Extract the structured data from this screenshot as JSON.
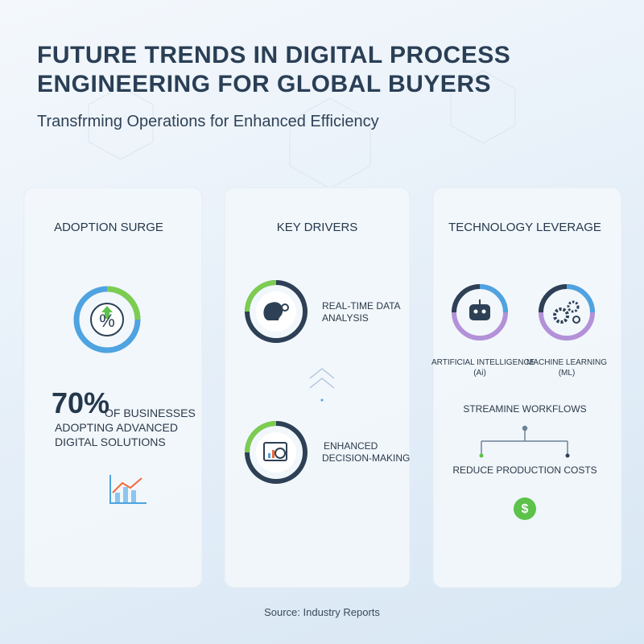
{
  "header": {
    "title": [
      "FUTURE TRENDS IN DIGITAL PROCESS",
      "ENGINEERING FOR GLOBAL BUYERS"
    ],
    "subtitle": "Transfrming Operations for Enhanced Efficiency"
  },
  "cards": [
    {
      "title": "ADOPTION SURGE",
      "icon": "%",
      "stat": "70%",
      "stat_lines": [
        "OF BUSINESSES",
        "ADOPTING ADVANCED",
        "DIGITAL SOLUTIONS"
      ]
    },
    {
      "title": "KEY DRIVERS",
      "items": [
        [
          "REAL-TIME DATA",
          "ANALYSIS"
        ],
        [
          "ENHANCED",
          "DECISION-MAKING"
        ]
      ]
    },
    {
      "title": "TECHNOLOGY LEVERAGE",
      "techs": [
        [
          "ARTIFICIAL INTELLIGENCE",
          "(Ai)"
        ],
        [
          "MACHINE LEARNING",
          "(ML)"
        ]
      ],
      "flow_top": "STREAMINE WORKFLOWS",
      "flow_bottom": "REDUCE PRODUCTION COSTS",
      "cost_icon": "$"
    }
  ],
  "footer": {
    "source": "Source: Industry Reports"
  }
}
